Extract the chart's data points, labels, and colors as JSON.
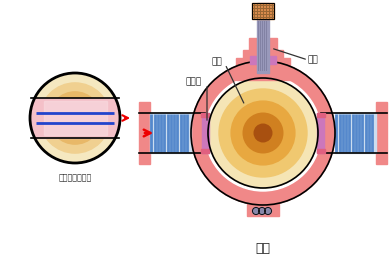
{
  "title": "球阀",
  "label_qiuti": "球体",
  "label_mifengzuo": "密封座",
  "label_faguan": "阀杆",
  "label_cross_section": "球体俯视剖面图",
  "bg_color": "#ffffff",
  "valve_body_color": "#f08888",
  "ball_grad": [
    "#f5e4b0",
    "#f0c878",
    "#e8a840",
    "#cc8020",
    "#a05010"
  ],
  "pipe_stripe_color": "#5588cc",
  "pipe_bg_color": "#ccddf0",
  "stem_color": "#9999bb",
  "stem_top_color": "#e09050",
  "seat_color": "#cc77bb",
  "arrow_color": "#ee0000",
  "text_color": "#222222",
  "line_color": "#000000",
  "annot_line_color": "#333333",
  "band_color": "#f0b0c0",
  "band_pink_center": "#f8d0d8"
}
